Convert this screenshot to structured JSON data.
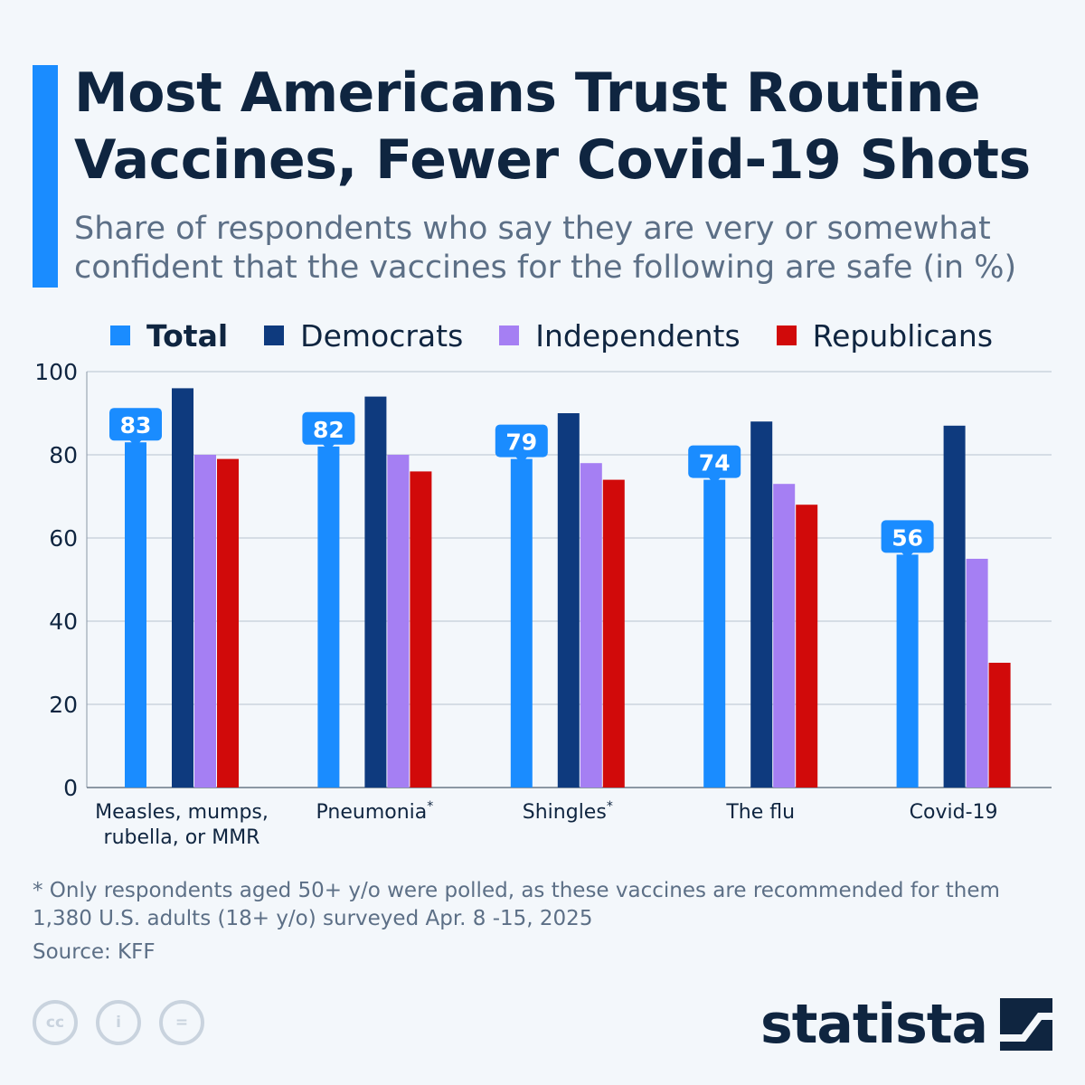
{
  "header": {
    "title": "Most Americans Trust Routine Vaccines, Fewer Covid-19 Shots",
    "subtitle": "Share of respondents who say they are very or somewhat confident that the vaccines for the following are safe (in %)"
  },
  "colors": {
    "accent": "#1a8cff",
    "total": "#1a8cff",
    "democrats": "#0e3a7e",
    "independents": "#a57ff3",
    "republicans": "#d10a0a",
    "grid": "#b7c3cf",
    "text": "#0f2540"
  },
  "legend": [
    {
      "label": "Total",
      "color": "#1a8cff"
    },
    {
      "label": "Democrats",
      "color": "#0e3a7e"
    },
    {
      "label": "Independents",
      "color": "#a57ff3"
    },
    {
      "label": "Republicans",
      "color": "#d10a0a"
    }
  ],
  "chart_data": {
    "type": "bar",
    "title": "Most Americans Trust Routine Vaccines, Fewer Covid-19 Shots",
    "subtitle": "Share of respondents who say they are very or somewhat confident that the vaccines for the following are safe (in %)",
    "categories": [
      {
        "lines": [
          "Measles, mumps,",
          "rubella, or MMR"
        ],
        "sup": ""
      },
      {
        "lines": [
          "Pneumonia"
        ],
        "sup": "*"
      },
      {
        "lines": [
          "Shingles"
        ],
        "sup": "*"
      },
      {
        "lines": [
          "The flu"
        ],
        "sup": ""
      },
      {
        "lines": [
          "Covid-19"
        ],
        "sup": ""
      }
    ],
    "series": [
      {
        "name": "Total",
        "values": [
          83,
          82,
          79,
          74,
          56
        ],
        "color": "#1a8cff",
        "labeled": true
      },
      {
        "name": "Democrats",
        "values": [
          96,
          94,
          90,
          88,
          87
        ],
        "color": "#0e3a7e",
        "labeled": false
      },
      {
        "name": "Independents",
        "values": [
          80,
          80,
          78,
          73,
          55
        ],
        "color": "#a57ff3",
        "labeled": false
      },
      {
        "name": "Republicans",
        "values": [
          79,
          76,
          74,
          68,
          30
        ],
        "color": "#d10a0a",
        "labeled": false
      }
    ],
    "yticks": [
      0,
      20,
      40,
      60,
      80,
      100
    ],
    "ylim": [
      0,
      100
    ],
    "grid": true,
    "legend_position": "top"
  },
  "footer": {
    "note_line1": "* Only respondents aged 50+ y/o were polled, as these vaccines are recommended for them",
    "note_line2": "1,380 U.S. adults (18+ y/o) surveyed Apr. 8 -15, 2025",
    "source": "Source: KFF",
    "cc_icons": [
      {
        "name": "cc-icon",
        "glyph": "cc"
      },
      {
        "name": "attribution-icon",
        "glyph": "i"
      },
      {
        "name": "no-derivatives-icon",
        "glyph": "="
      }
    ],
    "logo_text": "statista"
  }
}
